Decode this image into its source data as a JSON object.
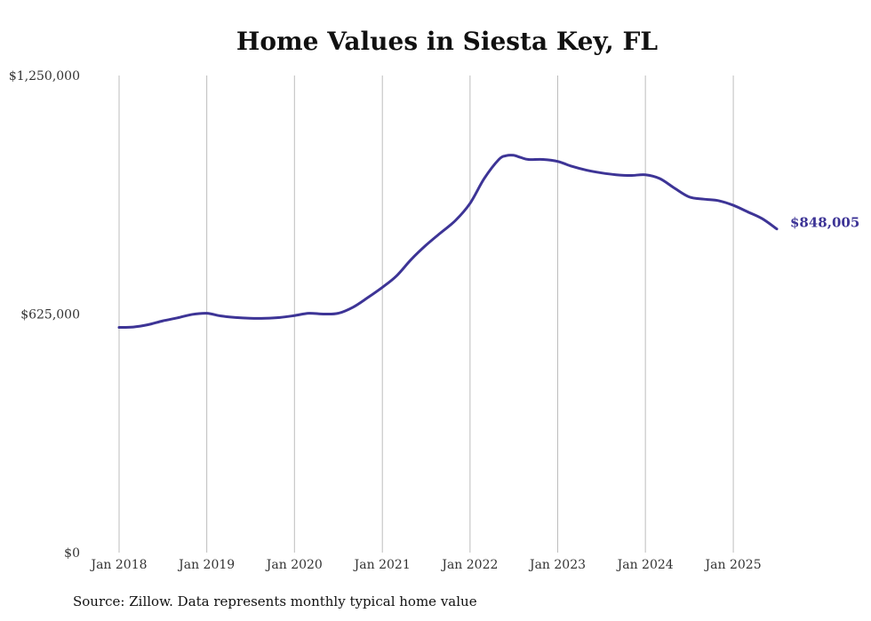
{
  "chart_data": {
    "type": "line",
    "title": "Home Values in Siesta Key, FL",
    "xlabel": "",
    "ylabel": "",
    "ylim": [
      0,
      1250000
    ],
    "xlim": [
      "2018-01-01",
      "2025-07-01"
    ],
    "y_ticks": [
      {
        "value": 0,
        "label": "$0"
      },
      {
        "value": 625000,
        "label": "$625,000"
      },
      {
        "value": 1250000,
        "label": "$1,250,000"
      }
    ],
    "x_ticks": [
      {
        "date": "2018-01-01",
        "label": "Jan 2018"
      },
      {
        "date": "2019-01-01",
        "label": "Jan 2019"
      },
      {
        "date": "2020-01-01",
        "label": "Jan 2020"
      },
      {
        "date": "2021-01-01",
        "label": "Jan 2021"
      },
      {
        "date": "2022-01-01",
        "label": "Jan 2022"
      },
      {
        "date": "2023-01-01",
        "label": "Jan 2023"
      },
      {
        "date": "2024-01-01",
        "label": "Jan 2024"
      },
      {
        "date": "2025-01-01",
        "label": "Jan 2025"
      }
    ],
    "grid": {
      "vertical": true,
      "horizontal": false
    },
    "legend": "none",
    "line_color": "#3d3496",
    "series": [
      {
        "end_label": "$848,005",
        "x": [
          "2018-01-01",
          "2018-03-01",
          "2018-05-01",
          "2018-07-01",
          "2018-09-01",
          "2018-11-01",
          "2019-01-01",
          "2019-03-01",
          "2019-05-01",
          "2019-07-01",
          "2019-09-01",
          "2019-11-01",
          "2020-01-01",
          "2020-03-01",
          "2020-05-01",
          "2020-07-01",
          "2020-09-01",
          "2020-11-01",
          "2021-01-01",
          "2021-03-01",
          "2021-05-01",
          "2021-07-01",
          "2021-09-01",
          "2021-11-01",
          "2022-01-01",
          "2022-03-01",
          "2022-05-01",
          "2022-06-01",
          "2022-07-01",
          "2022-08-01",
          "2022-09-01",
          "2022-11-01",
          "2023-01-01",
          "2023-03-01",
          "2023-05-01",
          "2023-07-01",
          "2023-09-01",
          "2023-11-01",
          "2024-01-01",
          "2024-03-01",
          "2024-05-01",
          "2024-07-01",
          "2024-09-01",
          "2024-11-01",
          "2025-01-01",
          "2025-03-01",
          "2025-05-01",
          "2025-07-01"
        ],
        "y": [
          590000,
          591000,
          597000,
          607000,
          615000,
          624000,
          627000,
          620000,
          616000,
          614000,
          614000,
          616000,
          621000,
          627000,
          625000,
          627000,
          643000,
          668000,
          695000,
          725000,
          768000,
          805000,
          838000,
          870000,
          915000,
          980000,
          1030000,
          1040000,
          1041000,
          1035000,
          1030000,
          1030000,
          1025000,
          1012000,
          1002000,
          995000,
          990000,
          988000,
          990000,
          980000,
          955000,
          932000,
          926000,
          922000,
          910000,
          893000,
          875000,
          848005
        ]
      }
    ]
  },
  "footer": {
    "source": "Source: Zillow. Data represents monthly typical home value"
  }
}
